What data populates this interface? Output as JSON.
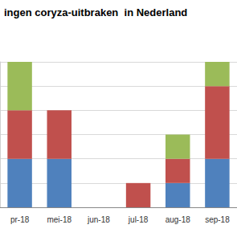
{
  "chart_data": {
    "type": "bar",
    "title": "ingen coryza-uitbraken  in Nederland",
    "categories": [
      "pr-18",
      "mei-18",
      "jun-18",
      "jul-18",
      "aug-18",
      "sep-18"
    ],
    "series": [
      {
        "color": "#4f81bd",
        "values": [
          2,
          2,
          0,
          0,
          1,
          2
        ]
      },
      {
        "color": "#c0504d",
        "values": [
          2,
          2,
          0,
          1,
          1,
          3
        ]
      },
      {
        "color": "#9bbb59",
        "values": [
          2,
          0,
          0,
          0,
          1,
          1
        ]
      }
    ],
    "stacked": true,
    "ylim": [
      0,
      6
    ],
    "yticks": [
      0,
      1,
      2,
      3,
      4,
      5,
      6
    ],
    "grid": true,
    "tick_labels": "x"
  }
}
